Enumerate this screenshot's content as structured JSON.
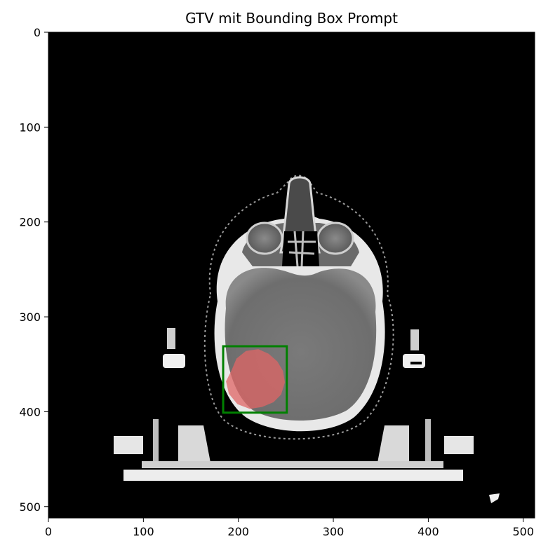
{
  "chart_data": {
    "type": "image",
    "title": "GTV mit Bounding Box Prompt",
    "xlabel": "",
    "ylabel": "",
    "xlim": [
      0,
      512
    ],
    "ylim": [
      512,
      0
    ],
    "x_ticks": [
      0,
      100,
      200,
      300,
      400,
      500
    ],
    "y_ticks": [
      0,
      100,
      200,
      300,
      400,
      500
    ],
    "bounding_box": {
      "x_min": 184,
      "y_min": 331,
      "x_max": 251,
      "y_max": 401,
      "color": "#008000"
    },
    "gtv_mask": {
      "color": "#e06666",
      "outline": [
        [
          193,
          356
        ],
        [
          198,
          344
        ],
        [
          208,
          336
        ],
        [
          221,
          334
        ],
        [
          232,
          339
        ],
        [
          241,
          347
        ],
        [
          247,
          357
        ],
        [
          249,
          369
        ],
        [
          245,
          382
        ],
        [
          237,
          390
        ],
        [
          225,
          395
        ],
        [
          212,
          397
        ],
        [
          199,
          392
        ],
        [
          190,
          381
        ],
        [
          187,
          368
        ]
      ]
    }
  },
  "colors": {
    "background": "#000000",
    "box": "#008000",
    "mask": "#e06666"
  }
}
